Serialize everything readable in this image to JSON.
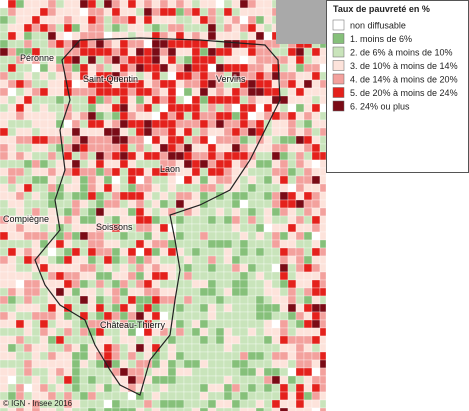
{
  "legend": {
    "title": "Taux de pauvreté en %",
    "items": [
      {
        "label": "non diffusable",
        "color": "#ffffff"
      },
      {
        "label": "1. moins de 6%",
        "color": "#86c07a"
      },
      {
        "label": "2. de 6% à moins de 10%",
        "color": "#c9e4bb"
      },
      {
        "label": "3. de 10% à moins de 14%",
        "color": "#fde3db"
      },
      {
        "label": "4. de 14% à moins de 20%",
        "color": "#f3a19d"
      },
      {
        "label": "5. de 20% à moins de 24%",
        "color": "#e4211c"
      },
      {
        "label": "6. 24% ou plus",
        "color": "#7a0b16"
      }
    ]
  },
  "places": [
    {
      "label": "Péronne"
    },
    {
      "label": "Saint-Quentin"
    },
    {
      "label": "Vervins"
    },
    {
      "label": "Laon"
    },
    {
      "label": "Compiègne"
    },
    {
      "label": "Soissons"
    },
    {
      "label": "Château-Thierry"
    }
  ],
  "credit": "© IGN - Insee 2016"
}
